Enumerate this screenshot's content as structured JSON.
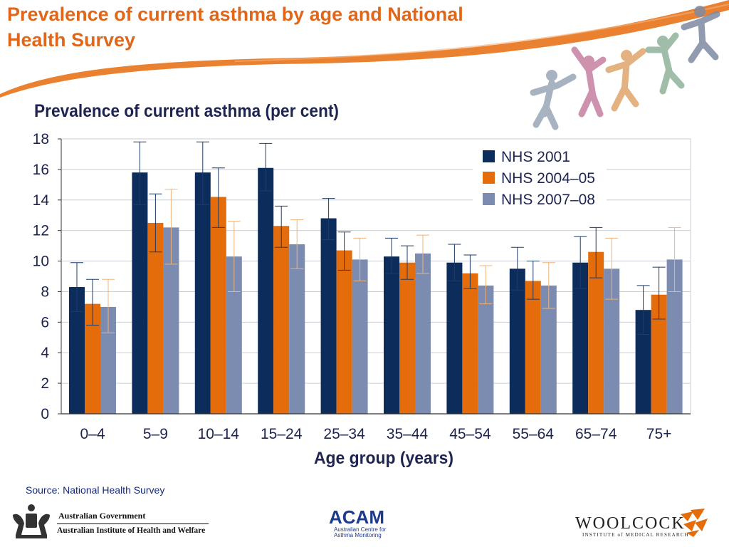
{
  "slide": {
    "title": "Prevalence of current asthma by age and National Health Survey",
    "source": "Source: National Health Survey"
  },
  "colors": {
    "title": "#E0661A",
    "swoosh": "#E8761E",
    "nhs2001": "#0C2D5C",
    "nhs200405": "#E46C0A",
    "nhs200708": "#7B8CB0",
    "errbar_dark": "#1F3B6A",
    "errbar_orange": "#F0B37A"
  },
  "logos": {
    "gov_line1": "Australian Government",
    "gov_line2": "Australian Institute of Health and Welfare",
    "acam_name": "ACAM",
    "acam_line1": "Australian Centre for",
    "acam_line2": "Asthma Monitoring",
    "woolcock_name": "WOOLCOCK",
    "woolcock_sub": "INSTITUTE of MEDICAL RESEARCH"
  },
  "chart_data": {
    "type": "bar",
    "title": "Prevalence of current asthma (per cent)",
    "xlabel": "Age group (years)",
    "ylabel": "",
    "ylim": [
      0,
      18
    ],
    "yticks": [
      0,
      2,
      4,
      6,
      8,
      10,
      12,
      14,
      16,
      18
    ],
    "grid": true,
    "legend_position": "top-right",
    "categories": [
      "0–4",
      "5–9",
      "10–14",
      "15–24",
      "25–34",
      "35–44",
      "45–54",
      "55–64",
      "65–74",
      "75+"
    ],
    "series": [
      {
        "name": "NHS 2001",
        "values": [
          8.3,
          15.8,
          15.8,
          16.1,
          12.8,
          10.3,
          9.9,
          9.5,
          9.9,
          6.8
        ],
        "err_low": [
          6.7,
          13.7,
          13.7,
          14.6,
          11.4,
          9.2,
          8.7,
          8.1,
          8.2,
          5.2
        ],
        "err_high": [
          9.9,
          17.8,
          17.8,
          17.7,
          14.1,
          11.5,
          11.1,
          10.9,
          11.6,
          8.4
        ]
      },
      {
        "name": "NHS 2004–05",
        "values": [
          7.2,
          12.5,
          14.2,
          12.3,
          10.7,
          9.9,
          9.2,
          8.7,
          10.6,
          7.8
        ],
        "err_low": [
          5.8,
          10.6,
          12.2,
          10.9,
          9.4,
          8.8,
          8.2,
          7.5,
          8.9,
          6.2
        ],
        "err_high": [
          8.8,
          14.4,
          16.1,
          13.6,
          11.9,
          11.0,
          10.4,
          10.0,
          12.2,
          9.6
        ]
      },
      {
        "name": "NHS 2007–08",
        "values": [
          7.0,
          12.2,
          10.3,
          11.1,
          10.1,
          10.5,
          8.4,
          8.4,
          9.5,
          10.1
        ],
        "err_low": [
          5.3,
          9.8,
          8.0,
          9.5,
          8.7,
          9.2,
          7.2,
          6.9,
          7.5,
          8.0
        ],
        "err_high": [
          8.8,
          14.7,
          12.6,
          12.7,
          11.5,
          11.7,
          9.7,
          9.9,
          11.5,
          12.2
        ]
      }
    ]
  }
}
